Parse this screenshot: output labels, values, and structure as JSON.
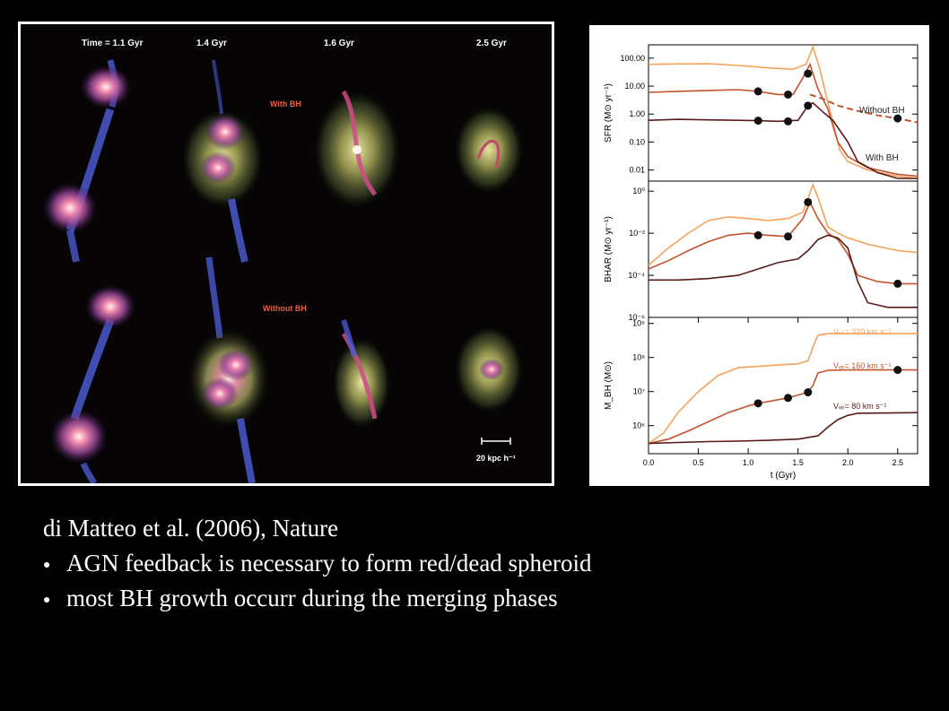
{
  "simulation": {
    "time_labels": [
      "Time = 1.1 Gyr",
      "1.4 Gyr",
      "1.6 Gyr",
      "2.5 Gyr"
    ],
    "row_labels": [
      "With BH",
      "Without BH"
    ],
    "scale_label": "20 kpc h⁻¹"
  },
  "caption": {
    "citation": "di Matteo et al. (2006), Nature",
    "bullets": [
      "AGN feedback is necessary to form red/dead spheroid",
      "most BH growth occurr during the merging phases"
    ]
  },
  "colors": {
    "v320": "#f5a35a",
    "v160": "#c4522a",
    "v80": "#5a1a1a",
    "markers": "#111111"
  },
  "chart_data": [
    {
      "type": "line",
      "panel": "top",
      "ylabel": "SFR (M⊙ yr⁻¹)",
      "yscale": "log",
      "ylim": [
        0.004,
        300
      ],
      "yticks": [
        "100.00",
        "10.00",
        "1.00",
        "0.10",
        "0.01"
      ],
      "annotations": [
        "Without BH",
        "With BH"
      ],
      "series": [
        {
          "color_key": "v320",
          "x": [
            0,
            0.3,
            0.6,
            0.9,
            1.2,
            1.45,
            1.58,
            1.65,
            1.72,
            1.78,
            1.85,
            1.92,
            2.0,
            2.2,
            2.5,
            2.7
          ],
          "y": [
            60,
            62,
            63,
            55,
            45,
            40,
            60,
            250,
            40,
            5,
            0.5,
            0.05,
            0.02,
            0.01,
            0.006,
            0.005
          ]
        },
        {
          "color_key": "v160",
          "x": [
            0,
            0.3,
            0.6,
            0.9,
            1.1,
            1.3,
            1.45,
            1.55,
            1.62,
            1.7,
            1.8,
            1.9,
            2.0,
            2.2,
            2.5,
            2.7
          ],
          "y": [
            6,
            6.5,
            7,
            7.5,
            6.5,
            5,
            5,
            20,
            60,
            8,
            1.5,
            0.1,
            0.03,
            0.012,
            0.007,
            0.006
          ]
        },
        {
          "color_key": "v80",
          "x": [
            0,
            0.3,
            0.6,
            0.9,
            1.1,
            1.3,
            1.5,
            1.6,
            1.65,
            1.75,
            1.85,
            2.0,
            2.1,
            2.3,
            2.5,
            2.7
          ],
          "y": [
            0.6,
            0.65,
            0.62,
            0.6,
            0.58,
            0.55,
            0.6,
            2.0,
            2.5,
            1.2,
            0.6,
            0.1,
            0.02,
            0.008,
            0.005,
            0.005
          ]
        }
      ],
      "dashed_without_bh": {
        "color_key": "v160",
        "x": [
          1.62,
          1.75,
          1.9,
          2.1,
          2.3,
          2.5,
          2.7
        ],
        "y": [
          5,
          3.5,
          2,
          1.3,
          0.9,
          0.7,
          0.5
        ]
      },
      "markers": [
        {
          "x": 1.1,
          "y": 6.5
        },
        {
          "x": 1.4,
          "y": 5
        },
        {
          "x": 1.6,
          "y": 28
        },
        {
          "x": 1.1,
          "y": 0.58
        },
        {
          "x": 1.4,
          "y": 0.55
        },
        {
          "x": 1.6,
          "y": 2.0
        },
        {
          "x": 2.5,
          "y": 0.7
        }
      ]
    },
    {
      "type": "line",
      "panel": "middle",
      "ylabel": "BHAR (M⊙ yr⁻¹)",
      "yscale": "log",
      "ylim": [
        1e-06,
        3
      ],
      "yticks": [
        "10⁰",
        "10⁻²",
        "10⁻⁴",
        "10⁻⁶"
      ],
      "series": [
        {
          "color_key": "v320",
          "x": [
            0,
            0.2,
            0.4,
            0.6,
            0.8,
            1.0,
            1.2,
            1.4,
            1.55,
            1.65,
            1.7,
            1.8,
            1.9,
            2.0,
            2.2,
            2.5,
            2.7
          ],
          "y": [
            0.0003,
            0.002,
            0.01,
            0.04,
            0.06,
            0.05,
            0.04,
            0.05,
            0.1,
            2.0,
            0.5,
            0.02,
            0.01,
            0.006,
            0.003,
            0.0015,
            0.0012
          ]
        },
        {
          "color_key": "v160",
          "x": [
            0,
            0.2,
            0.4,
            0.6,
            0.8,
            1.0,
            1.2,
            1.4,
            1.55,
            1.62,
            1.7,
            1.8,
            1.9,
            2.0,
            2.1,
            2.3,
            2.5,
            2.7
          ],
          "y": [
            0.0002,
            0.0005,
            0.0015,
            0.004,
            0.008,
            0.01,
            0.008,
            0.007,
            0.05,
            0.3,
            0.05,
            0.01,
            0.005,
            0.001,
            0.0001,
            5e-05,
            4e-05,
            4e-05
          ]
        },
        {
          "color_key": "v80",
          "x": [
            0,
            0.3,
            0.6,
            0.9,
            1.1,
            1.3,
            1.5,
            1.6,
            1.7,
            1.8,
            1.9,
            2.0,
            2.1,
            2.2,
            2.4,
            2.7
          ],
          "y": [
            6e-05,
            6e-05,
            7e-05,
            0.0001,
            0.0002,
            0.0004,
            0.0006,
            0.0015,
            0.005,
            0.008,
            0.006,
            0.002,
            5e-05,
            5e-06,
            3e-06,
            3e-06
          ]
        }
      ],
      "markers": [
        {
          "x": 1.1,
          "y": 0.008
        },
        {
          "x": 1.4,
          "y": 0.007
        },
        {
          "x": 1.6,
          "y": 0.3
        },
        {
          "x": 2.5,
          "y": 4e-05
        }
      ]
    },
    {
      "type": "line",
      "panel": "bottom",
      "ylabel": "M_BH (M⊙)",
      "xlabel": "t (Gyr)",
      "yscale": "log",
      "ylim": [
        150000,
        1500000000
      ],
      "xlim": [
        0,
        2.7
      ],
      "yticks": [
        "10⁹",
        "10⁸",
        "10⁷",
        "10⁶"
      ],
      "xticks": [
        "0.0",
        "0.5",
        "1.0",
        "1.5",
        "2.0",
        "2.5"
      ],
      "annotations": [
        "Vᵥᵢᵣ= 320 km s⁻¹",
        "Vᵥᵢᵣ= 160 km s⁻¹",
        "Vᵥᵢᵣ= 80 km s⁻¹"
      ],
      "series": [
        {
          "color_key": "v320",
          "x": [
            0,
            0.15,
            0.3,
            0.5,
            0.7,
            0.9,
            1.1,
            1.3,
            1.5,
            1.6,
            1.65,
            1.7,
            1.8,
            2.0,
            2.7
          ],
          "y": [
            300000,
            600000,
            2500000,
            10000000,
            30000000,
            50000000,
            55000000,
            60000000,
            65000000,
            80000000,
            200000000,
            450000000,
            500000000,
            500000000,
            500000000
          ]
        },
        {
          "color_key": "v160",
          "x": [
            0,
            0.2,
            0.4,
            0.6,
            0.8,
            1.0,
            1.1,
            1.4,
            1.6,
            1.65,
            1.7,
            1.8,
            2.0,
            2.7
          ],
          "y": [
            300000,
            400000,
            700000,
            1300000,
            2400000,
            3800000,
            4500000,
            6500000,
            9500000,
            15000000,
            35000000,
            42000000,
            43000000,
            43000000
          ]
        },
        {
          "color_key": "v80",
          "x": [
            0,
            0.3,
            0.6,
            0.9,
            1.2,
            1.5,
            1.7,
            1.8,
            1.9,
            2.0,
            2.1,
            2.7
          ],
          "y": [
            300000,
            320000,
            340000,
            350000,
            370000,
            400000,
            500000,
            900000,
            1500000,
            2000000,
            2300000,
            2400000
          ]
        }
      ],
      "markers": [
        {
          "x": 1.1,
          "y": 4500000
        },
        {
          "x": 1.4,
          "y": 6500000
        },
        {
          "x": 1.6,
          "y": 9500000
        },
        {
          "x": 2.5,
          "y": 43000000
        }
      ]
    }
  ]
}
